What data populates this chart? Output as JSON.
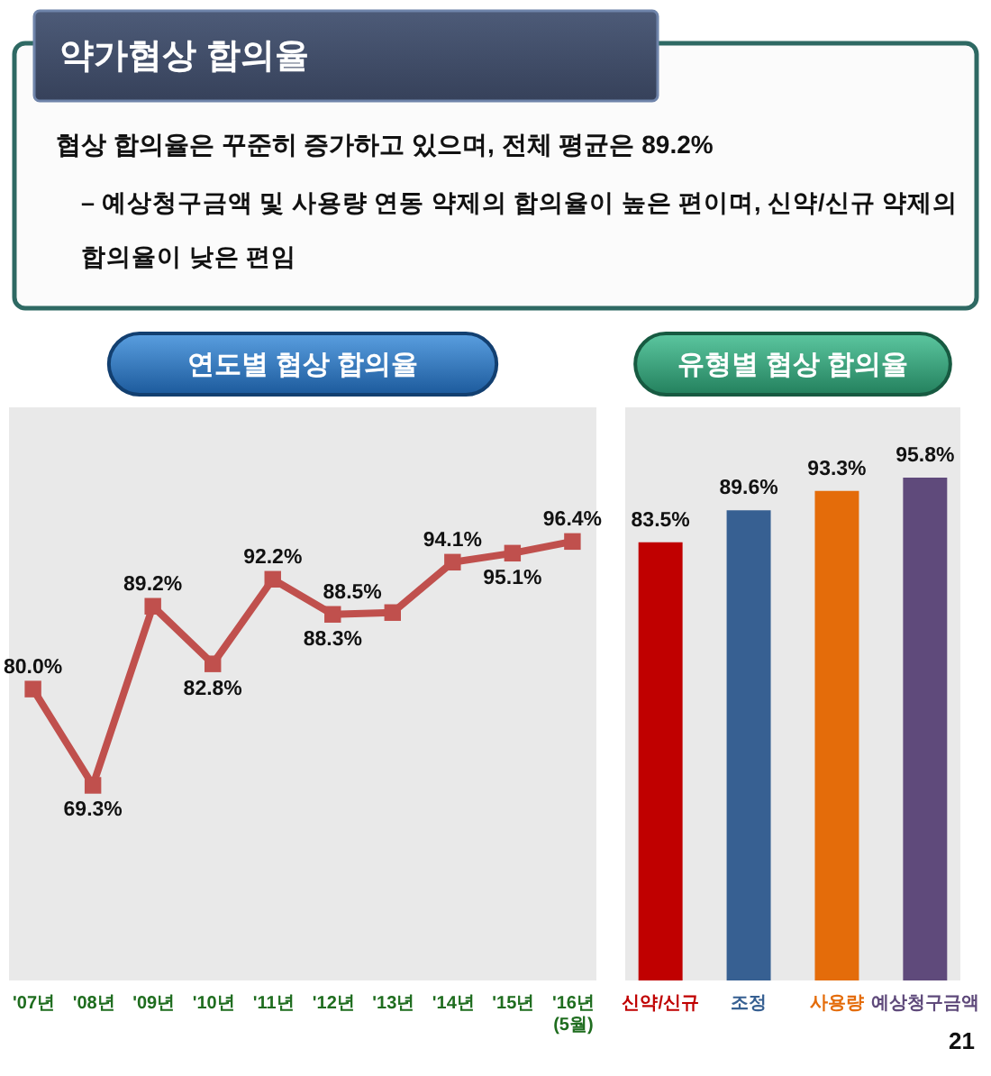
{
  "chart_data": [
    {
      "type": "other",
      "title": "약가협상 합의율",
      "annotations": [
        "협상 합의율은 꾸준히 증가하고 있으며, 전체 평균은 89.2%",
        "– 예상청구금액 및 사용량 연동 약제의 합의율이 높은 편이며, 신약/신규 약제의 합의율이 낮은 편임"
      ]
    },
    {
      "type": "line",
      "title": "연도별 협상 합의율",
      "categories": [
        "'07년",
        "'08년",
        "'09년",
        "'10년",
        "'11년",
        "'12년",
        "'13년",
        "'14년",
        "'15년",
        "'16년(5월)"
      ],
      "values": [
        80.0,
        69.3,
        89.2,
        82.8,
        92.2,
        88.3,
        88.5,
        94.1,
        95.1,
        96.4
      ],
      "value_labels": [
        "80.0%",
        "69.3%",
        "89.2%",
        "82.8%",
        "92.2%",
        "88.3%",
        "88.5%",
        "94.1%",
        "95.1%",
        "96.4%"
      ],
      "color": "#c0504d",
      "marker": "square",
      "line_style": "solid",
      "tick_labels": "x"
    },
    {
      "type": "bar",
      "title": "유형별 협상 합의율",
      "categories": [
        "신약/신규",
        "조정",
        "사용량",
        "예상청구금액"
      ],
      "values": [
        83.5,
        89.6,
        93.3,
        95.8
      ],
      "value_labels": [
        "83.5%",
        "89.6%",
        "93.3%",
        "95.8%"
      ],
      "colors": [
        "#c00000",
        "#376092",
        "#e46c0a",
        "#5f4a7b"
      ],
      "tick_labels": "x",
      "annotations": [
        "21"
      ]
    }
  ]
}
